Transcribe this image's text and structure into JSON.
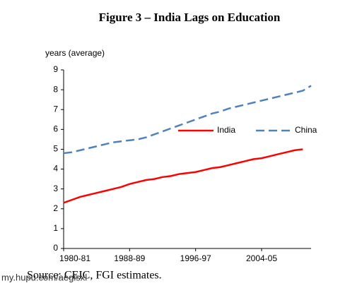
{
  "chart_data": {
    "type": "line",
    "title": "Figure 3 – India Lags on Education",
    "y_label": "years (average)",
    "source": "Source: CEIC, FGI estimates.",
    "watermark": "my.hupu.com/aegisxl",
    "categories": [
      "1980-81",
      null,
      null,
      null,
      null,
      null,
      null,
      null,
      "1988-89",
      null,
      null,
      null,
      null,
      null,
      null,
      null,
      "1996-97",
      null,
      null,
      null,
      null,
      null,
      null,
      null,
      "2004-05",
      null,
      null,
      null,
      null,
      null,
      null
    ],
    "series": [
      {
        "name": "India",
        "color": "#ff0000",
        "dash": false,
        "values": [
          2.3,
          2.45,
          2.6,
          2.7,
          2.8,
          2.9,
          3.0,
          3.1,
          3.25,
          3.35,
          3.45,
          3.5,
          3.6,
          3.65,
          3.75,
          3.8,
          3.85,
          3.95,
          4.05,
          4.1,
          4.2,
          4.3,
          4.4,
          4.5,
          4.55,
          4.65,
          4.75,
          4.85,
          4.95,
          5.0,
          null
        ]
      },
      {
        "name": "China",
        "color": "#4f81bd",
        "dash": true,
        "values": [
          4.8,
          4.85,
          4.95,
          5.05,
          5.15,
          5.25,
          5.35,
          5.4,
          5.45,
          5.5,
          5.6,
          5.75,
          5.9,
          6.05,
          6.2,
          6.35,
          6.5,
          6.65,
          6.8,
          6.9,
          7.05,
          7.15,
          7.25,
          7.35,
          7.45,
          7.55,
          7.65,
          7.75,
          7.85,
          7.95,
          8.2
        ]
      }
    ],
    "ylim": [
      0,
      9
    ],
    "yticks": [
      0,
      1,
      2,
      3,
      4,
      5,
      6,
      7,
      8,
      9
    ],
    "grid": false,
    "legend": "right"
  }
}
